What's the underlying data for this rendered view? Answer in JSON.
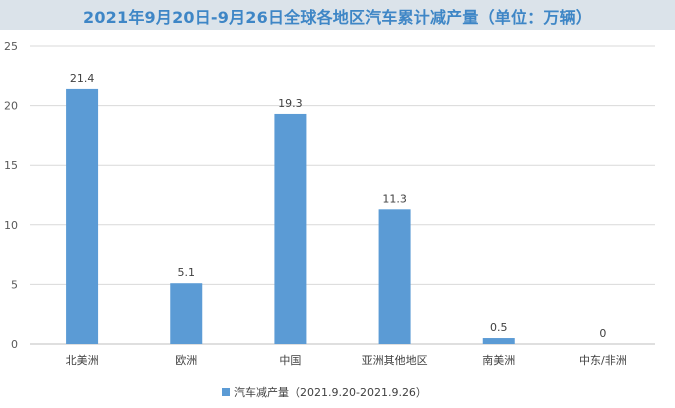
{
  "chart_data": {
    "type": "bar",
    "title": "2021年9月20日-9月26日全球各地区汽车累计减产量（单位：万辆）",
    "categories": [
      "北美洲",
      "欧洲",
      "中国",
      "亚洲其他地区",
      "南美洲",
      "中东/非洲"
    ],
    "series": [
      {
        "name": "汽车减产量（2021.9.20-2021.9.26）",
        "values": [
          21.4,
          5.1,
          19.3,
          11.3,
          0.5,
          0
        ],
        "labels": [
          "21.4",
          "5.1",
          "19.3",
          "11.3",
          "0.5",
          "0"
        ]
      }
    ],
    "ylim": [
      0,
      25
    ],
    "yticks": [
      0,
      5,
      10,
      15,
      20,
      25
    ],
    "grid": true,
    "legend_position": "bottom-left",
    "xlabel": "",
    "ylabel": ""
  },
  "colors": {
    "bar": "#5b9bd5",
    "title_text": "#3e86c6",
    "title_band": "#dbe3ea",
    "grid": "#d9d9d9",
    "axis": "#bfbfbf"
  }
}
